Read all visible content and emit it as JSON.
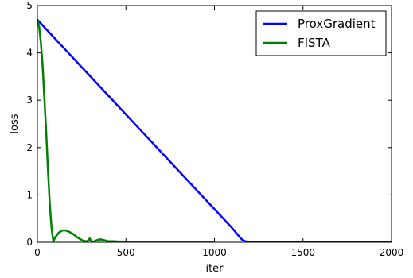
{
  "chart_data": {
    "type": "line",
    "title": "",
    "xlabel": "iter",
    "ylabel": "loss",
    "xlim": [
      0,
      2000
    ],
    "ylim": [
      0,
      5
    ],
    "x_ticks": [
      0,
      500,
      1000,
      1500,
      2000
    ],
    "y_ticks": [
      0,
      1,
      2,
      3,
      4,
      5
    ],
    "grid": false,
    "legend_position": "top-right",
    "series": [
      {
        "name": "ProxGradient",
        "color": "#0000ff",
        "x": [
          0,
          100,
          200,
          300,
          400,
          500,
          600,
          700,
          800,
          900,
          1000,
          1100,
          1140,
          1160,
          1175,
          1200,
          1500,
          2000
        ],
        "y": [
          4.7,
          4.3,
          3.9,
          3.5,
          3.1,
          2.7,
          2.3,
          1.9,
          1.5,
          1.1,
          0.7,
          0.3,
          0.12,
          0.04,
          0.02,
          0.01,
          0.01,
          0.01
        ]
      },
      {
        "name": "FISTA",
        "color": "#008000",
        "x": [
          0,
          10,
          20,
          30,
          40,
          50,
          60,
          70,
          80,
          90,
          100,
          120,
          140,
          160,
          180,
          200,
          220,
          240,
          260,
          280,
          290,
          295,
          300,
          310,
          320,
          340,
          360,
          380,
          400,
          430,
          460,
          500,
          600,
          800,
          1000
        ],
        "y": [
          4.7,
          4.55,
          4.2,
          3.7,
          3.0,
          2.3,
          1.5,
          0.8,
          0.3,
          0.02,
          0.1,
          0.2,
          0.25,
          0.25,
          0.22,
          0.18,
          0.12,
          0.07,
          0.03,
          0.02,
          0.05,
          0.08,
          0.05,
          0.01,
          0.02,
          0.05,
          0.06,
          0.04,
          0.02,
          0.02,
          0.015,
          0.01,
          0.01,
          0.01,
          0.01
        ]
      }
    ]
  }
}
